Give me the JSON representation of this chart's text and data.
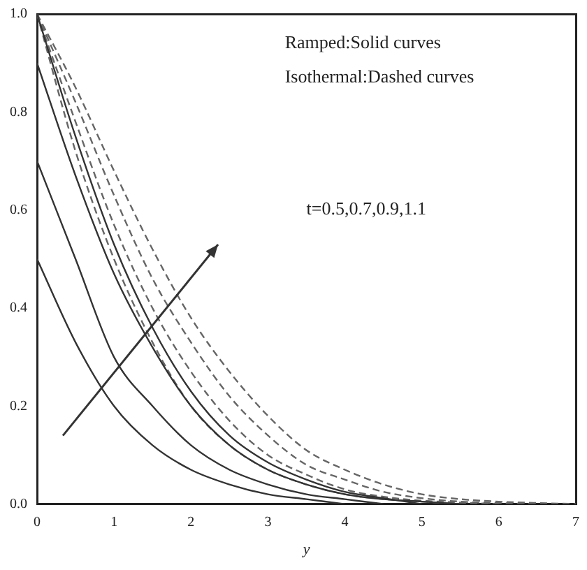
{
  "chart_data": {
    "type": "line",
    "xlabel": "y",
    "xlim": [
      0,
      7
    ],
    "xticks": [
      0,
      1,
      2,
      3,
      4,
      5,
      6,
      7
    ],
    "ylim": [
      0,
      1
    ],
    "yticks": [
      {
        "value": 0,
        "label": "0.0"
      },
      {
        "value": 0.2,
        "label": "0.2"
      },
      {
        "value": 0.4,
        "label": "0.4"
      },
      {
        "value": 0.6,
        "label": "0.6"
      },
      {
        "value": 0.8,
        "label": "0.8"
      },
      {
        "value": 1,
        "label": "1.0"
      }
    ],
    "grid": false,
    "legend": false,
    "marker": "none",
    "series": [
      {
        "color": "#333333",
        "line_style": "solid",
        "x": [
          0,
          0.5,
          1,
          1.5,
          2,
          2.5,
          3,
          3.5,
          4
        ],
        "values": [
          0.5,
          0.33,
          0.2,
          0.12,
          0.07,
          0.04,
          0.02,
          0.01,
          0
        ]
      },
      {
        "color": "#333333",
        "line_style": "solid",
        "x": [
          0,
          0.5,
          1,
          1.5,
          2,
          2.5,
          3,
          3.5,
          4,
          4.5
        ],
        "values": [
          0.7,
          0.5,
          0.3,
          0.2,
          0.12,
          0.07,
          0.04,
          0.02,
          0.01,
          0
        ]
      },
      {
        "color": "#333333",
        "line_style": "solid",
        "x": [
          0,
          0.5,
          1,
          1.5,
          2,
          2.5,
          3,
          3.5,
          4,
          4.5,
          5,
          5.5
        ],
        "values": [
          0.9,
          0.67,
          0.47,
          0.32,
          0.2,
          0.12,
          0.07,
          0.04,
          0.02,
          0.01,
          0.005,
          0
        ]
      },
      {
        "color": "#333333",
        "line_style": "solid",
        "x": [
          0,
          0.5,
          1,
          1.5,
          2,
          2.5,
          3,
          3.5,
          4,
          4.5,
          5
        ],
        "values": [
          1,
          0.75,
          0.53,
          0.36,
          0.23,
          0.14,
          0.085,
          0.05,
          0.025,
          0.012,
          0
        ]
      },
      {
        "color": "#666666",
        "line_style": "dashed",
        "x": [
          0,
          0.5,
          1,
          1.5,
          2,
          2.5,
          3,
          3.5,
          4,
          4.5,
          5,
          5.5
        ],
        "values": [
          1,
          0.72,
          0.5,
          0.33,
          0.2,
          0.12,
          0.07,
          0.04,
          0.02,
          0.01,
          0.005,
          0
        ]
      },
      {
        "color": "#666666",
        "line_style": "dashed",
        "x": [
          0,
          0.5,
          1,
          1.5,
          2,
          2.5,
          3,
          3.5,
          4,
          4.5,
          5,
          5.5,
          6
        ],
        "values": [
          1,
          0.78,
          0.57,
          0.4,
          0.27,
          0.17,
          0.1,
          0.06,
          0.03,
          0.015,
          0.007,
          0.003,
          0
        ]
      },
      {
        "color": "#666666",
        "line_style": "dashed",
        "x": [
          0,
          0.5,
          1,
          1.5,
          2,
          2.5,
          3,
          3.5,
          4,
          4.5,
          5,
          5.5,
          6,
          6.5
        ],
        "values": [
          1,
          0.82,
          0.63,
          0.46,
          0.33,
          0.22,
          0.14,
          0.08,
          0.05,
          0.025,
          0.012,
          0.005,
          0.002,
          0
        ]
      },
      {
        "color": "#666666",
        "line_style": "dashed",
        "x": [
          0,
          0.5,
          1,
          1.5,
          2,
          2.5,
          3,
          3.5,
          4,
          4.5,
          5,
          5.5,
          6,
          7
        ],
        "values": [
          1,
          0.85,
          0.68,
          0.52,
          0.38,
          0.27,
          0.18,
          0.11,
          0.07,
          0.04,
          0.02,
          0.01,
          0.005,
          0
        ]
      }
    ],
    "annotations": [
      "Ramped:Solid curves",
      "Isothermal:Dashed curves",
      "t=0.5,0.7,0.9,1.1"
    ]
  }
}
